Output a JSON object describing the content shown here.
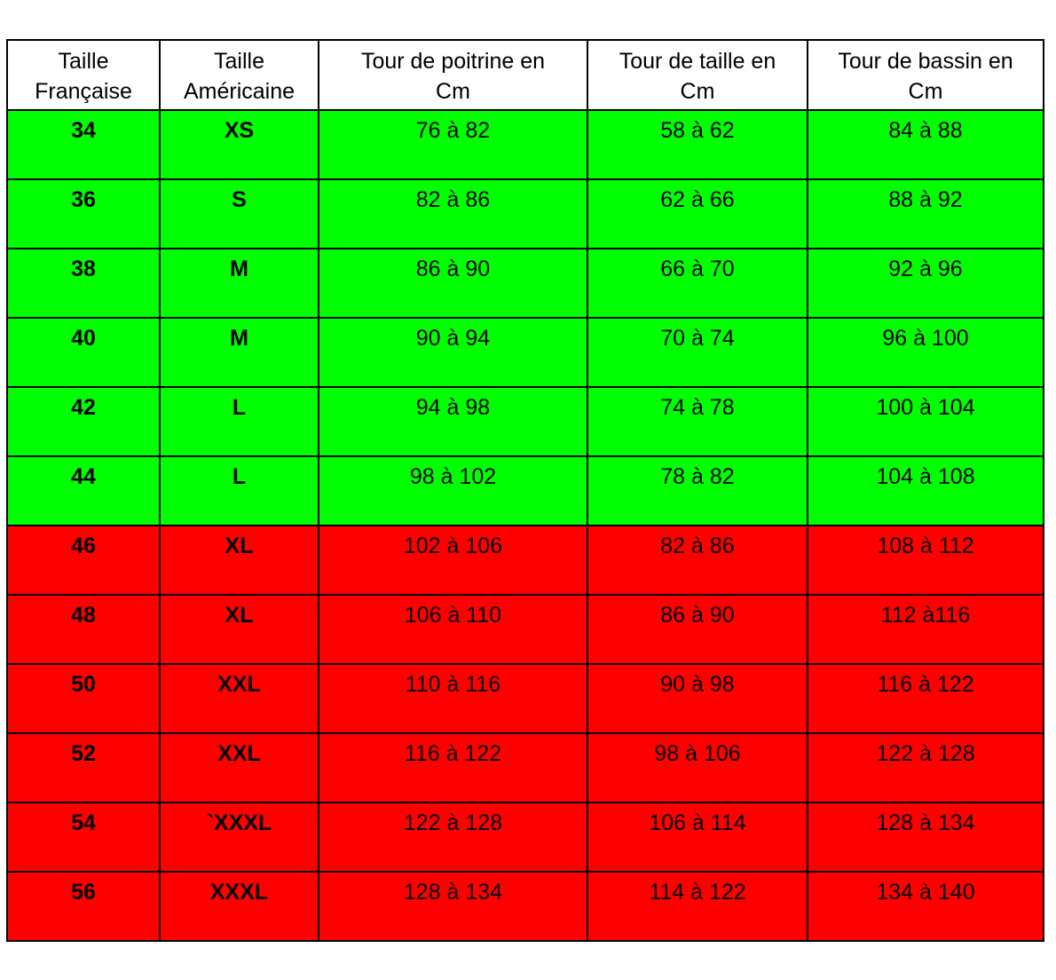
{
  "table": {
    "header": [
      "Taille\nFrançaise",
      "Taille\nAméricaine",
      "Tour de poitrine en\nCm",
      "Tour de taille en\nCm",
      "Tour de bassin en\nCm"
    ],
    "rows": [
      [
        "34",
        "XS",
        "76 à 82",
        "58 à 62",
        "84 à 88"
      ],
      [
        "36",
        "S",
        "82 à 86",
        "62 à 66",
        "88 à 92"
      ],
      [
        "38",
        "M",
        "86 à 90",
        "66 à 70",
        "92 à 96"
      ],
      [
        "40",
        "M",
        "90 à 94",
        "70 à 74",
        "96 à 100"
      ],
      [
        "42",
        "L",
        "94 à 98",
        "74 à 78",
        "100 à 104"
      ],
      [
        "44",
        "L",
        "98 à 102",
        "78 à 82",
        "104 à 108"
      ],
      [
        "46",
        "XL",
        "102 à 106",
        "82 à 86",
        "108 à 112"
      ],
      [
        "48",
        "XL",
        "106 à 110",
        "86 à 90",
        "112 à116"
      ],
      [
        "50",
        "XXL",
        "110 à 116",
        "90 à 98",
        "116 à 122"
      ],
      [
        "52",
        "XXL",
        "116 à 122",
        "98 à 106",
        "122 à 128"
      ],
      [
        "54",
        "`XXXL",
        "122 à 128",
        "106 à 114",
        "128 à 134"
      ],
      [
        "56",
        "XXXL",
        "128 à 134",
        "114 à 122",
        "134 à 140"
      ]
    ],
    "row_colors": [
      "#00ff00",
      "#00ff00",
      "#00ff00",
      "#00ff00",
      "#00ff00",
      "#00ff00",
      "#ff0000",
      "#ff0000",
      "#ff0000",
      "#ff0000",
      "#ff0000",
      "#ff0000"
    ]
  }
}
